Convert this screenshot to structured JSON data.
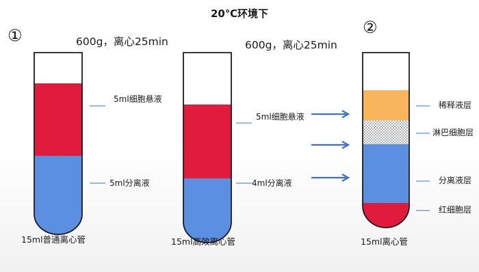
{
  "title": "20℃环境下",
  "steps": {
    "step1": "①",
    "step2": "②"
  },
  "conditions": {
    "tube1": "600g，离心25min",
    "tube2": "600g，离心25min"
  },
  "tube1": {
    "caption": "15ml普通离心管",
    "upper_label": "5ml细胞悬液",
    "lower_label": "5ml分离液"
  },
  "tube2": {
    "caption": "15ml高效离心管",
    "upper_label": "5ml细胞悬液",
    "lower_label": "4ml分离液"
  },
  "tube3": {
    "caption": "15ml离心管",
    "layer_labels": [
      "稀释液层",
      "淋巴细胞层",
      "分离液层",
      "红细胞层"
    ]
  },
  "colors": {
    "cell_suspension": "#e01b3c",
    "separation_fluid": "#5b8fe0",
    "diluent": "#f9b55b",
    "lymphocyte": "#d9d9d9",
    "red_cells": "#e01b3c",
    "arrow": "#3d6fc5"
  }
}
